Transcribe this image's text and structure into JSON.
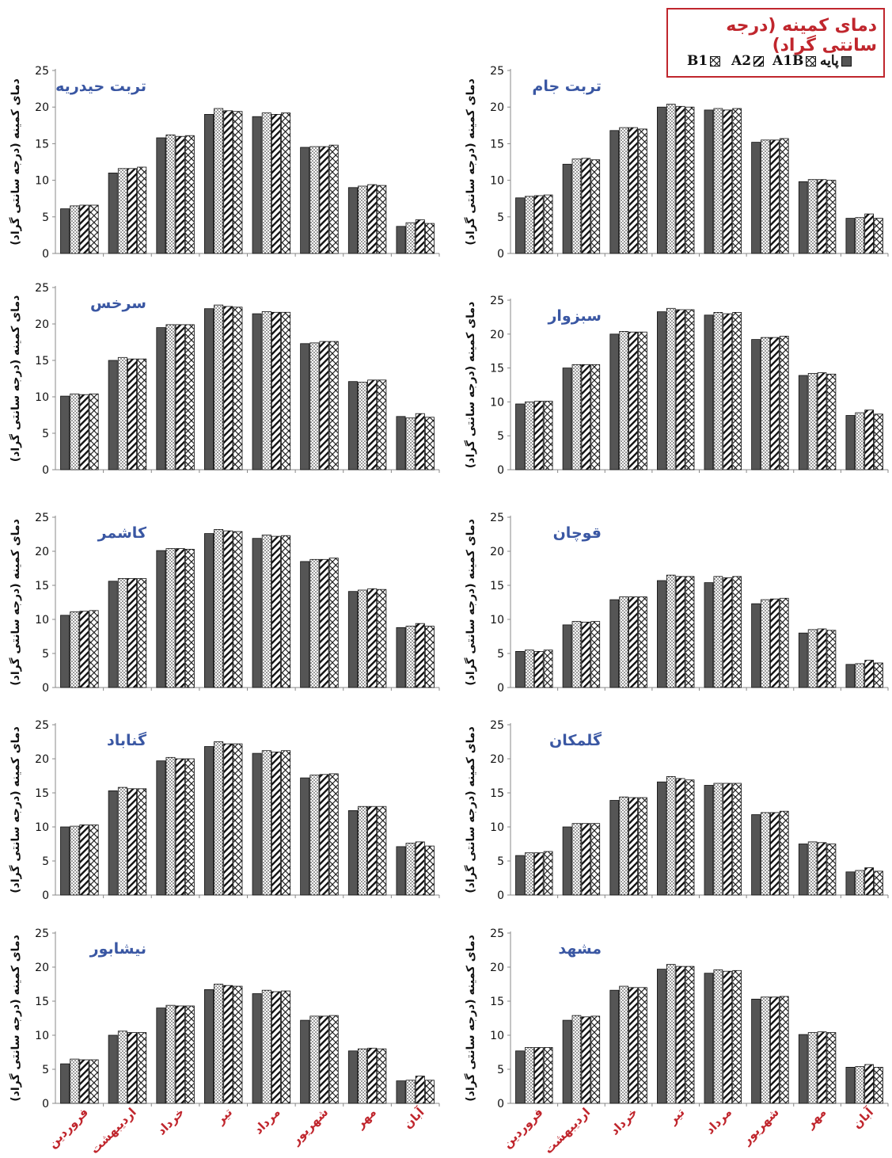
{
  "legend": {
    "title": "دمای کمینه (درجه سانتی گراد)",
    "items": [
      {
        "label": "پایه",
        "fill": "solid"
      },
      {
        "label": "A1B",
        "fill": "dots"
      },
      {
        "label": "A2",
        "fill": "diagonal"
      },
      {
        "label": "B1",
        "fill": "crosshatch"
      }
    ]
  },
  "colors": {
    "title_blue": "#3a57a3",
    "axis_label_red": "#c0262d",
    "bar_dark": "#555555"
  },
  "chart_data": [
    {
      "type": "bar",
      "title": "تربت حیدریه",
      "ylabel": "دمای کمینه (درجه سانتی گراد)",
      "ylim": [
        0,
        25
      ],
      "yticks": [
        "0",
        "5",
        "10",
        "15",
        "20",
        "25"
      ],
      "categories": [
        "فروردین",
        "اردیبهشت",
        "خرداد",
        "تیر",
        "مرداد",
        "شهریور",
        "مهر",
        "آبان"
      ],
      "show_xlabels": false,
      "series": [
        {
          "name": "پایه",
          "values": [
            6.1,
            11.0,
            15.8,
            19.0,
            18.7,
            14.5,
            9.0,
            3.7
          ]
        },
        {
          "name": "A1B",
          "values": [
            6.5,
            11.6,
            16.2,
            19.8,
            19.2,
            14.6,
            9.2,
            4.2
          ]
        },
        {
          "name": "A2",
          "values": [
            6.6,
            11.6,
            16.0,
            19.5,
            19.0,
            14.6,
            9.4,
            4.6
          ]
        },
        {
          "name": "B1",
          "values": [
            6.6,
            11.8,
            16.1,
            19.4,
            19.2,
            14.8,
            9.3,
            4.1
          ]
        }
      ]
    },
    {
      "type": "bar",
      "title": "تربت جام",
      "ylabel": "دمای کمینه (درجه سانتی گراد)",
      "ylim": [
        0,
        25
      ],
      "yticks": [
        "0",
        "5",
        "10",
        "15",
        "20",
        "25"
      ],
      "categories": [
        "فروردین",
        "اردیبهشت",
        "خرداد",
        "تیر",
        "مرداد",
        "شهریور",
        "مهر",
        "آبان"
      ],
      "show_xlabels": false,
      "series": [
        {
          "name": "پایه",
          "values": [
            7.6,
            12.2,
            16.8,
            20.0,
            19.6,
            15.2,
            9.8,
            4.8
          ]
        },
        {
          "name": "A1B",
          "values": [
            7.8,
            12.9,
            17.2,
            20.4,
            19.8,
            15.5,
            10.1,
            4.9
          ]
        },
        {
          "name": "A2",
          "values": [
            7.9,
            13.0,
            17.2,
            20.1,
            19.6,
            15.5,
            10.1,
            5.4
          ]
        },
        {
          "name": "B1",
          "values": [
            8.0,
            12.8,
            17.0,
            20.0,
            19.8,
            15.7,
            10.0,
            4.8
          ]
        }
      ]
    },
    {
      "type": "bar",
      "title": "سرخس",
      "ylabel": "دمای کمینه (درجه سانتی گراد)",
      "ylim": [
        0,
        25
      ],
      "yticks": [
        "0",
        "5",
        "10",
        "15",
        "20",
        "25"
      ],
      "categories": [
        "فروردین",
        "اردیبهشت",
        "خرداد",
        "تیر",
        "مرداد",
        "شهریور",
        "مهر",
        "آبان"
      ],
      "show_xlabels": false,
      "series": [
        {
          "name": "پایه",
          "values": [
            10.1,
            15.0,
            19.5,
            22.1,
            21.4,
            17.3,
            12.1,
            7.3
          ]
        },
        {
          "name": "A1B",
          "values": [
            10.4,
            15.4,
            19.9,
            22.6,
            21.7,
            17.4,
            12.0,
            7.1
          ]
        },
        {
          "name": "A2",
          "values": [
            10.3,
            15.2,
            19.9,
            22.4,
            21.6,
            17.6,
            12.3,
            7.7
          ]
        },
        {
          "name": "B1",
          "values": [
            10.4,
            15.2,
            19.9,
            22.3,
            21.6,
            17.6,
            12.3,
            7.2
          ]
        }
      ]
    },
    {
      "type": "bar",
      "title": "سبزوار",
      "ylabel": "دمای کمینه (درجه سانتی گراد)",
      "ylim": [
        0,
        25
      ],
      "yticks": [
        "0",
        "5",
        "10",
        "15",
        "20",
        "25"
      ],
      "categories": [
        "فروردین",
        "اردیبهشت",
        "خرداد",
        "تیر",
        "مرداد",
        "شهریور",
        "مهر",
        "آبان"
      ],
      "show_xlabels": false,
      "series": [
        {
          "name": "پایه",
          "values": [
            9.7,
            15.0,
            20.0,
            23.3,
            22.8,
            19.2,
            13.9,
            8.0
          ]
        },
        {
          "name": "A1B",
          "values": [
            10.0,
            15.5,
            20.4,
            23.8,
            23.2,
            19.5,
            14.2,
            8.4
          ]
        },
        {
          "name": "A2",
          "values": [
            10.1,
            15.5,
            20.3,
            23.6,
            23.0,
            19.5,
            14.3,
            8.8
          ]
        },
        {
          "name": "B1",
          "values": [
            10.1,
            15.5,
            20.3,
            23.6,
            23.2,
            19.7,
            14.1,
            8.2
          ]
        }
      ]
    },
    {
      "type": "bar",
      "title": "کاشمر",
      "ylabel": "دمای کمینه (درجه سانتی گراد)",
      "ylim": [
        0,
        25
      ],
      "yticks": [
        "0",
        "5",
        "10",
        "15",
        "20",
        "25"
      ],
      "categories": [
        "فروردین",
        "اردیبهشت",
        "خرداد",
        "تیر",
        "مرداد",
        "شهریور",
        "مهر",
        "آبان"
      ],
      "show_xlabels": false,
      "series": [
        {
          "name": "پایه",
          "values": [
            10.6,
            15.6,
            20.1,
            22.6,
            21.9,
            18.5,
            14.1,
            8.8
          ]
        },
        {
          "name": "A1B",
          "values": [
            11.1,
            16.0,
            20.4,
            23.2,
            22.4,
            18.8,
            14.3,
            9.0
          ]
        },
        {
          "name": "A2",
          "values": [
            11.2,
            16.0,
            20.4,
            23.0,
            22.2,
            18.8,
            14.5,
            9.4
          ]
        },
        {
          "name": "B1",
          "values": [
            11.3,
            16.0,
            20.3,
            22.9,
            22.3,
            19.0,
            14.4,
            9.0
          ]
        }
      ]
    },
    {
      "type": "bar",
      "title": "قوچان",
      "ylabel": "دمای کمینه (درجه سانتی گراد)",
      "ylim": [
        0,
        25
      ],
      "yticks": [
        "0",
        "5",
        "10",
        "15",
        "20",
        "25"
      ],
      "categories": [
        "فروردین",
        "اردیبهشت",
        "خرداد",
        "تیر",
        "مرداد",
        "شهریور",
        "مهر",
        "آبان"
      ],
      "show_xlabels": false,
      "series": [
        {
          "name": "پایه",
          "values": [
            5.3,
            9.2,
            12.9,
            15.7,
            15.4,
            12.3,
            8.0,
            3.4
          ]
        },
        {
          "name": "A1B",
          "values": [
            5.5,
            9.7,
            13.3,
            16.5,
            16.3,
            12.9,
            8.5,
            3.5
          ]
        },
        {
          "name": "A2",
          "values": [
            5.3,
            9.6,
            13.3,
            16.3,
            16.1,
            13.0,
            8.6,
            4.0
          ]
        },
        {
          "name": "B1",
          "values": [
            5.5,
            9.7,
            13.3,
            16.3,
            16.3,
            13.1,
            8.4,
            3.6
          ]
        }
      ]
    },
    {
      "type": "bar",
      "title": "گناباد",
      "ylabel": "دمای کمینه (درجه سانتی گراد)",
      "ylim": [
        0,
        25
      ],
      "yticks": [
        "0",
        "5",
        "10",
        "15",
        "20",
        "25"
      ],
      "categories": [
        "فروردین",
        "اردیبهشت",
        "خرداد",
        "تیر",
        "مرداد",
        "شهریور",
        "مهر",
        "آبان"
      ],
      "show_xlabels": false,
      "series": [
        {
          "name": "پایه",
          "values": [
            10.0,
            15.3,
            19.7,
            21.8,
            20.8,
            17.2,
            12.4,
            7.1
          ]
        },
        {
          "name": "A1B",
          "values": [
            10.1,
            15.8,
            20.2,
            22.5,
            21.2,
            17.6,
            13.0,
            7.6
          ]
        },
        {
          "name": "A2",
          "values": [
            10.3,
            15.6,
            20.0,
            22.2,
            21.0,
            17.7,
            13.0,
            7.8
          ]
        },
        {
          "name": "B1",
          "values": [
            10.3,
            15.6,
            20.0,
            22.2,
            21.2,
            17.8,
            13.0,
            7.2
          ]
        }
      ]
    },
    {
      "type": "bar",
      "title": "گلمکان",
      "ylabel": "دمای کمینه (درجه سانتی گراد)",
      "ylim": [
        0,
        25
      ],
      "yticks": [
        "0",
        "5",
        "10",
        "15",
        "20",
        "25"
      ],
      "categories": [
        "فروردین",
        "اردیبهشت",
        "خرداد",
        "تیر",
        "مرداد",
        "شهریور",
        "مهر",
        "آبان"
      ],
      "show_xlabels": false,
      "series": [
        {
          "name": "پایه",
          "values": [
            5.8,
            10.0,
            13.9,
            16.6,
            16.1,
            11.8,
            7.5,
            3.4
          ]
        },
        {
          "name": "A1B",
          "values": [
            6.2,
            10.5,
            14.4,
            17.4,
            16.4,
            12.1,
            7.8,
            3.6
          ]
        },
        {
          "name": "A2",
          "values": [
            6.2,
            10.5,
            14.3,
            17.1,
            16.4,
            12.1,
            7.7,
            4.0
          ]
        },
        {
          "name": "B1",
          "values": [
            6.4,
            10.5,
            14.3,
            16.9,
            16.4,
            12.3,
            7.5,
            3.5
          ]
        }
      ]
    },
    {
      "type": "bar",
      "title": "نیشابور",
      "ylabel": "دمای کمینه (درجه سانتی گراد)",
      "ylim": [
        0,
        25
      ],
      "yticks": [
        "0",
        "5",
        "10",
        "15",
        "20",
        "25"
      ],
      "categories": [
        "فروردین",
        "اردیبهشت",
        "خرداد",
        "تیر",
        "مرداد",
        "شهریور",
        "مهر",
        "آبان"
      ],
      "show_xlabels": true,
      "series": [
        {
          "name": "پایه",
          "values": [
            5.8,
            10.0,
            14.0,
            16.7,
            16.1,
            12.2,
            7.7,
            3.3
          ]
        },
        {
          "name": "A1B",
          "values": [
            6.5,
            10.6,
            14.4,
            17.5,
            16.6,
            12.8,
            8.0,
            3.4
          ]
        },
        {
          "name": "A2",
          "values": [
            6.4,
            10.4,
            14.3,
            17.3,
            16.4,
            12.8,
            8.1,
            4.0
          ]
        },
        {
          "name": "B1",
          "values": [
            6.4,
            10.4,
            14.3,
            17.2,
            16.5,
            12.9,
            8.0,
            3.4
          ]
        }
      ]
    },
    {
      "type": "bar",
      "title": "مشهد",
      "ylabel": "دمای کمینه (درجه سانتی گراد)",
      "ylim": [
        0,
        25
      ],
      "yticks": [
        "0",
        "5",
        "10",
        "15",
        "20",
        "25"
      ],
      "categories": [
        "فروردین",
        "اردیبهشت",
        "خرداد",
        "تیر",
        "مرداد",
        "شهریور",
        "مهر",
        "آبان"
      ],
      "show_xlabels": true,
      "series": [
        {
          "name": "پایه",
          "values": [
            7.7,
            12.2,
            16.6,
            19.7,
            19.1,
            15.3,
            10.1,
            5.3
          ]
        },
        {
          "name": "A1B",
          "values": [
            8.2,
            12.9,
            17.2,
            20.4,
            19.6,
            15.6,
            10.4,
            5.4
          ]
        },
        {
          "name": "A2",
          "values": [
            8.2,
            12.7,
            17.0,
            20.1,
            19.4,
            15.6,
            10.5,
            5.7
          ]
        },
        {
          "name": "B1",
          "values": [
            8.2,
            12.8,
            17.0,
            20.1,
            19.5,
            15.7,
            10.4,
            5.3
          ]
        }
      ]
    }
  ]
}
